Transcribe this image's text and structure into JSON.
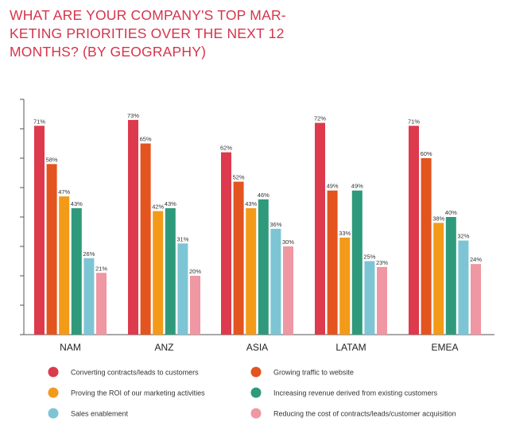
{
  "chart_data": {
    "type": "bar",
    "title": "WHAT ARE YOUR COMPANY'S TOP MARKETING PRIORITIES OVER THE NEXT 12 MONTHS? (BY GEOGRAPHY)",
    "title_lines": [
      "WHAT ARE YOUR COMPANY'S TOP MAR-",
      "KETING PRIORITIES OVER THE NEXT 12",
      "MONTHS? (BY GEOGRAPHY)"
    ],
    "categories": [
      "NAM",
      "ANZ",
      "ASIA",
      "LATAM",
      "EMEA"
    ],
    "ylim": [
      0,
      80
    ],
    "grid": false,
    "legend_position": "bottom",
    "series": [
      {
        "name": "Converting contracts/leads to customers",
        "color": "#dd3a4d",
        "values": [
          71,
          73,
          62,
          72,
          71
        ],
        "labels": [
          "71%",
          "73%",
          "62%",
          "72%",
          "71%"
        ]
      },
      {
        "name": "Growing traffic to website",
        "color": "#e3541e",
        "values": [
          58,
          65,
          52,
          49,
          60
        ],
        "labels": [
          "58%",
          "65%",
          "52%",
          "49%",
          "60%"
        ]
      },
      {
        "name": "Proving the ROI of our marketing activities",
        "color": "#f39a19",
        "values": [
          47,
          42,
          43,
          33,
          38
        ],
        "labels": [
          "47%",
          "42%",
          "43%",
          "33%",
          "38%"
        ]
      },
      {
        "name": "Increasing revenue derived from existing customers",
        "color": "#2f9a7b",
        "values": [
          43,
          43,
          46,
          49,
          40
        ],
        "labels": [
          "43%",
          "43%",
          "46%",
          "49%",
          "40%"
        ]
      },
      {
        "name": "Sales enablement",
        "color": "#7dc5d4",
        "values": [
          26,
          31,
          36,
          25,
          32
        ],
        "labels": [
          "26%",
          "31%",
          "36%",
          "25%",
          "32%"
        ]
      },
      {
        "name": "Reducing the cost of contracts/leads/customer acquisition",
        "color": "#ef97a3",
        "values": [
          21,
          20,
          30,
          23,
          24
        ],
        "labels": [
          "21%",
          "20%",
          "30%",
          "23%",
          "24%"
        ]
      }
    ]
  }
}
